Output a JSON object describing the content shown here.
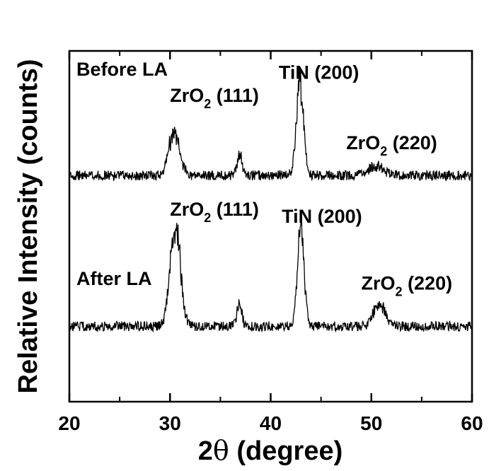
{
  "chart_data": {
    "type": "line",
    "xlabel_main": "2",
    "xlabel_theta": "θ",
    "xlabel_rest": " (degree)",
    "ylabel": "Relative Intensity (counts)",
    "xlim": [
      20,
      60
    ],
    "ylim": [
      0,
      1
    ],
    "xticks": [
      "20",
      "30",
      "40",
      "50",
      "60"
    ],
    "grid": false,
    "series": [
      {
        "name": "Before LA",
        "baseline": 0.645,
        "noise": 0.014,
        "peaks": [
          {
            "x": 30.4,
            "height": 0.12,
            "width": 0.55
          },
          {
            "x": 36.9,
            "height": 0.06,
            "width": 0.25
          },
          {
            "x": 42.9,
            "height": 0.26,
            "width": 0.35
          },
          {
            "x": 50.5,
            "height": 0.025,
            "width": 0.8
          }
        ]
      },
      {
        "name": "After LA",
        "baseline": 0.215,
        "noise": 0.014,
        "peaks": [
          {
            "x": 30.5,
            "height": 0.3,
            "width": 0.5
          },
          {
            "x": 36.9,
            "height": 0.06,
            "width": 0.25
          },
          {
            "x": 43.0,
            "height": 0.29,
            "width": 0.33
          },
          {
            "x": 50.8,
            "height": 0.06,
            "width": 0.6
          }
        ]
      }
    ],
    "annotations": [
      {
        "base": "ZrO",
        "sub": "2",
        "rest": " (111)",
        "x": 30.0,
        "y": 0.855
      },
      {
        "base": "TiN (200)",
        "sub": "",
        "rest": "",
        "x": 40.8,
        "y": 0.92
      },
      {
        "base": "ZrO",
        "sub": "2",
        "rest": " (220)",
        "x": 47.5,
        "y": 0.72
      },
      {
        "base": "ZrO",
        "sub": "2",
        "rest": " (111)",
        "x": 30.0,
        "y": 0.53
      },
      {
        "base": "TiN (200)",
        "sub": "",
        "rest": "",
        "x": 41.1,
        "y": 0.51
      },
      {
        "base": "ZrO",
        "sub": "2",
        "rest": " (220)",
        "x": 49.0,
        "y": 0.32
      }
    ]
  }
}
